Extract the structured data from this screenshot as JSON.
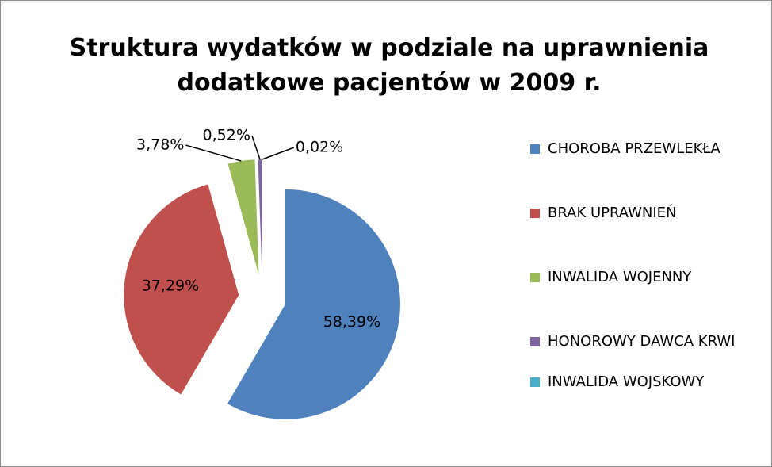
{
  "chart_data": {
    "type": "pie",
    "title": [
      "Struktura wydatków w podziale na uprawnienia",
      "dodatkowe pacjentów w 2009 r."
    ],
    "categories": [
      "CHOROBA PRZEWLEKŁA",
      "BRAK UPRAWNIEŃ",
      "INWALIDA WOJENNY",
      "HONOROWY DAWCA KRWI",
      "INWALIDA WOJSKOWY"
    ],
    "values": [
      58.39,
      37.29,
      3.78,
      0.52,
      0.02
    ],
    "value_labels": [
      "58,39%",
      "37,29%",
      "3,78%",
      "0,52%",
      "0,02%"
    ],
    "colors": [
      "#4f81bd",
      "#c0504d",
      "#9bbb59",
      "#8064a2",
      "#4bacc6"
    ],
    "legend": "right"
  }
}
